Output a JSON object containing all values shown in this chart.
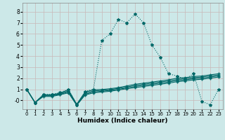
{
  "xlabel": "Humidex (Indice chaleur)",
  "xlim": [
    -0.5,
    23.5
  ],
  "ylim": [
    -0.8,
    8.8
  ],
  "yticks": [
    0,
    1,
    2,
    3,
    4,
    5,
    6,
    7,
    8
  ],
  "ytick_labels": [
    "-0",
    "1",
    "2",
    "3",
    "4",
    "5",
    "6",
    "7",
    "8"
  ],
  "xticks": [
    0,
    1,
    2,
    3,
    4,
    5,
    6,
    7,
    8,
    9,
    10,
    11,
    12,
    13,
    14,
    15,
    16,
    17,
    18,
    19,
    20,
    21,
    22,
    23
  ],
  "bg_color": "#cce8e8",
  "grid_color": "#c8b8b8",
  "line_color": "#006868",
  "line1_y": [
    1.0,
    -0.2,
    0.55,
    0.55,
    0.7,
    1.0,
    -0.4,
    0.8,
    1.0,
    5.4,
    6.0,
    7.3,
    7.0,
    7.8,
    7.0,
    5.0,
    3.9,
    2.4,
    2.2,
    1.9,
    2.4,
    -0.1,
    -0.4,
    1.0
  ],
  "line2_y": [
    1.0,
    -0.2,
    0.5,
    0.5,
    0.65,
    0.95,
    -0.35,
    0.75,
    0.95,
    0.98,
    1.05,
    1.15,
    1.3,
    1.45,
    1.55,
    1.65,
    1.75,
    1.85,
    2.0,
    2.05,
    2.15,
    2.2,
    2.3,
    2.4
  ],
  "line3_y": [
    1.0,
    -0.2,
    0.45,
    0.45,
    0.6,
    0.85,
    -0.38,
    0.65,
    0.85,
    0.9,
    0.98,
    1.08,
    1.2,
    1.35,
    1.45,
    1.55,
    1.65,
    1.75,
    1.88,
    1.95,
    2.05,
    2.1,
    2.2,
    2.3
  ],
  "line4_y": [
    1.0,
    -0.2,
    0.4,
    0.4,
    0.55,
    0.75,
    -0.42,
    0.55,
    0.75,
    0.82,
    0.9,
    1.0,
    1.12,
    1.25,
    1.35,
    1.45,
    1.55,
    1.65,
    1.78,
    1.85,
    1.95,
    2.0,
    2.1,
    2.2
  ],
  "line5_y": [
    1.0,
    -0.2,
    0.35,
    0.35,
    0.5,
    0.68,
    -0.44,
    0.48,
    0.68,
    0.75,
    0.82,
    0.93,
    1.05,
    1.15,
    1.25,
    1.35,
    1.45,
    1.55,
    1.68,
    1.75,
    1.85,
    1.9,
    2.0,
    2.1
  ]
}
